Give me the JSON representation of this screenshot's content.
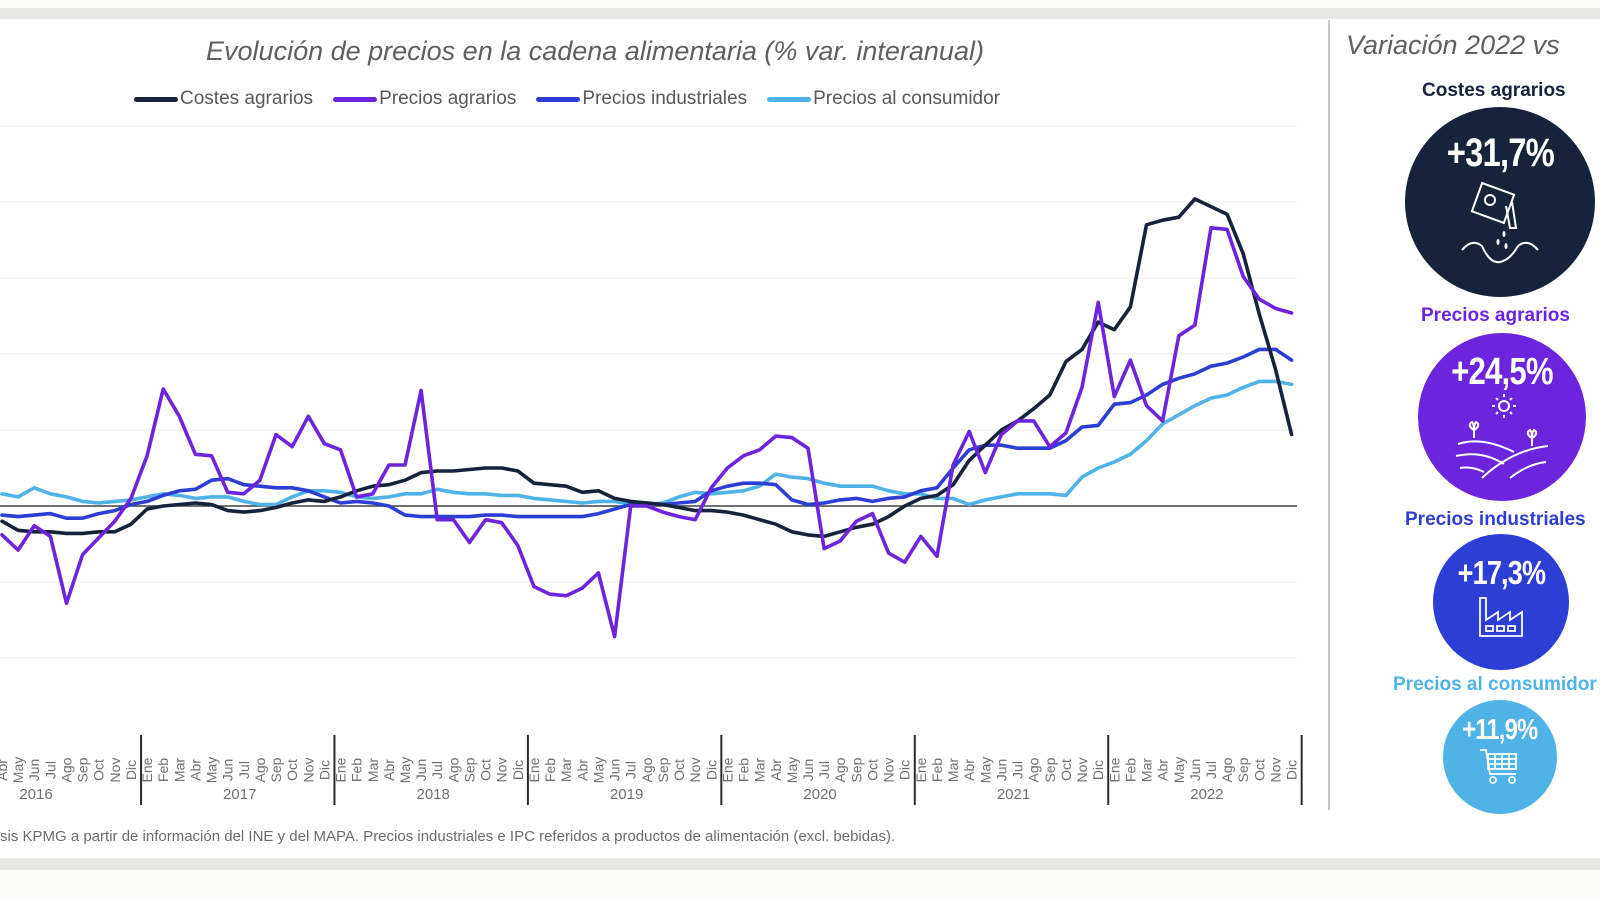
{
  "chart_data": {
    "type": "line",
    "title": "Evolución de precios en la cadena alimentaria (% var. interanual)",
    "xlabel": "",
    "ylabel": "",
    "ylim": [
      -10,
      25
    ],
    "grid": true,
    "legend_position": "top-center",
    "x_months": [
      "Abr",
      "May",
      "Jun",
      "Jul",
      "Ago",
      "Sep",
      "Oct",
      "Nov",
      "Dic",
      "Ene",
      "Feb",
      "Mar",
      "Abr",
      "May",
      "Jun",
      "Jul",
      "Ago",
      "Sep",
      "Oct",
      "Nov",
      "Dic",
      "Ene",
      "Feb",
      "Mar",
      "Abr",
      "May",
      "Jun",
      "Jul",
      "Ago",
      "Sep",
      "Oct",
      "Nov",
      "Dic",
      "Ene",
      "Feb",
      "Mar",
      "Abr",
      "May",
      "Jun",
      "Jul",
      "Ago",
      "Sep",
      "Oct",
      "Nov",
      "Dic",
      "Ene",
      "Feb",
      "Mar",
      "Abr",
      "May",
      "Jun",
      "Jul",
      "Ago",
      "Sep",
      "Oct",
      "Nov",
      "Dic",
      "Ene",
      "Feb",
      "Mar",
      "Abr",
      "May",
      "Jun",
      "Jul",
      "Ago",
      "Sep",
      "Oct",
      "Nov",
      "Dic",
      "Ene",
      "Feb",
      "Mar",
      "Abr",
      "May",
      "Jun",
      "Jul",
      "Ago",
      "Sep",
      "Oct",
      "Nov",
      "Dic"
    ],
    "x_years": [
      {
        "label": "2016",
        "months": 9
      },
      {
        "label": "2017",
        "months": 12
      },
      {
        "label": "2018",
        "months": 12
      },
      {
        "label": "2019",
        "months": 12
      },
      {
        "label": "2020",
        "months": 12
      },
      {
        "label": "2021",
        "months": 12
      },
      {
        "label": "2022",
        "months": 12
      }
    ],
    "series": [
      {
        "name": "Costes agrarios",
        "color": "#16233a",
        "values": [
          -1.0,
          -1.6,
          -1.7,
          -1.7,
          -1.8,
          -1.8,
          -1.7,
          -1.7,
          -1.2,
          -0.2,
          0.0,
          0.1,
          0.2,
          0.1,
          -0.3,
          -0.4,
          -0.3,
          -0.1,
          0.2,
          0.4,
          0.3,
          0.6,
          1.0,
          1.3,
          1.4,
          1.7,
          2.2,
          2.3,
          2.3,
          2.4,
          2.5,
          2.5,
          2.3,
          1.5,
          1.4,
          1.3,
          0.9,
          1.0,
          0.5,
          0.3,
          0.2,
          0.1,
          -0.1,
          -0.3,
          -0.3,
          -0.4,
          -0.6,
          -0.9,
          -1.2,
          -1.7,
          -1.9,
          -2.0,
          -1.7,
          -1.4,
          -1.2,
          -0.7,
          0.0,
          0.5,
          0.7,
          1.4,
          3.0,
          4.0,
          5.0,
          5.6,
          6.4,
          7.3,
          9.5,
          10.3,
          12.1,
          11.6,
          13.1,
          18.5,
          18.8,
          19.0,
          20.2,
          19.7,
          19.2,
          16.6,
          12.6,
          9.0,
          4.7
        ]
      },
      {
        "name": "Precios agrarios",
        "color": "#6c24dd",
        "values": [
          -1.9,
          -2.9,
          -1.3,
          -2.0,
          -6.4,
          -3.2,
          -2.1,
          -1.0,
          0.5,
          3.3,
          7.7,
          5.9,
          3.4,
          3.3,
          0.9,
          0.8,
          1.7,
          4.7,
          3.9,
          5.9,
          4.1,
          3.7,
          0.6,
          0.8,
          2.7,
          2.7,
          7.6,
          -0.9,
          -0.9,
          -2.4,
          -0.9,
          -1.1,
          -2.6,
          -5.3,
          -5.8,
          -5.9,
          -5.4,
          -4.4,
          -8.6,
          0.0,
          0.0,
          -0.4,
          -0.7,
          -0.9,
          1.2,
          2.5,
          3.3,
          3.7,
          4.6,
          4.5,
          3.8,
          -2.8,
          -2.3,
          -1.0,
          -0.5,
          -3.1,
          -3.7,
          -2.0,
          -3.3,
          2.7,
          4.9,
          2.2,
          4.7,
          5.6,
          5.6,
          3.9,
          4.8,
          7.8,
          13.4,
          7.2,
          9.6,
          6.6,
          5.6,
          11.2,
          11.9,
          18.3,
          18.2,
          15.1,
          13.6,
          13.0,
          12.7
        ]
      },
      {
        "name": "Precios industriales",
        "color": "#2d3ed4",
        "values": [
          -0.6,
          -0.7,
          -0.6,
          -0.5,
          -0.8,
          -0.8,
          -0.5,
          -0.3,
          0.1,
          0.3,
          0.7,
          1.0,
          1.1,
          1.7,
          1.8,
          1.4,
          1.3,
          1.2,
          1.2,
          1.0,
          0.6,
          0.2,
          0.3,
          0.2,
          0.0,
          -0.6,
          -0.7,
          -0.7,
          -0.7,
          -0.7,
          -0.6,
          -0.6,
          -0.7,
          -0.7,
          -0.7,
          -0.7,
          -0.7,
          -0.5,
          -0.2,
          0.1,
          0.2,
          0.1,
          0.2,
          0.3,
          1.0,
          1.3,
          1.5,
          1.5,
          1.4,
          0.4,
          0.1,
          0.2,
          0.4,
          0.5,
          0.3,
          0.5,
          0.6,
          1.0,
          1.2,
          2.5,
          3.7,
          4.0,
          4.0,
          3.8,
          3.8,
          3.8,
          4.3,
          5.2,
          5.3,
          6.7,
          6.8,
          7.3,
          8.0,
          8.4,
          8.7,
          9.2,
          9.4,
          9.8,
          10.3,
          10.3,
          9.6
        ]
      },
      {
        "name": "Precios al consumidor",
        "color": "#4fb3e8",
        "values": [
          0.8,
          0.6,
          1.2,
          0.8,
          0.6,
          0.3,
          0.2,
          0.3,
          0.4,
          0.6,
          0.8,
          0.7,
          0.5,
          0.6,
          0.6,
          0.3,
          0.1,
          0.1,
          0.6,
          1.0,
          1.0,
          0.9,
          0.6,
          0.5,
          0.6,
          0.8,
          0.8,
          1.1,
          0.9,
          0.8,
          0.8,
          0.7,
          0.7,
          0.5,
          0.4,
          0.3,
          0.2,
          0.3,
          0.3,
          0.1,
          0.1,
          0.2,
          0.6,
          0.9,
          0.8,
          0.9,
          1.0,
          1.3,
          2.1,
          1.9,
          1.8,
          1.5,
          1.3,
          1.3,
          1.3,
          1.0,
          0.8,
          0.8,
          0.5,
          0.5,
          0.1,
          0.4,
          0.6,
          0.8,
          0.8,
          0.8,
          0.7,
          1.9,
          2.5,
          2.9,
          3.4,
          4.3,
          5.4,
          6.0,
          6.6,
          7.1,
          7.3,
          7.8,
          8.2,
          8.2,
          8.0
        ]
      }
    ]
  },
  "side_panel": {
    "title": "Variación 2022 vs",
    "kpis": [
      {
        "label": "Costes agrarios",
        "value": "+31,7%",
        "color": "#16233a",
        "icon": "seed-bag-icon"
      },
      {
        "label": "Precios agrarios",
        "value": "+24,5%",
        "color": "#6c24dd",
        "icon": "farm-field-icon"
      },
      {
        "label": "Precios industriales",
        "value": "+17,3%",
        "color": "#2d3ed4",
        "icon": "factory-icon"
      },
      {
        "label": "Precios al consumidor",
        "value": "+11,9%",
        "color": "#4fb3e8",
        "icon": "shopping-cart-icon"
      }
    ]
  },
  "footnote": "sis KPMG a partir de información del INE y del MAPA. Precios industriales e IPC referidos a productos de alimentación (excl. bebidas)."
}
